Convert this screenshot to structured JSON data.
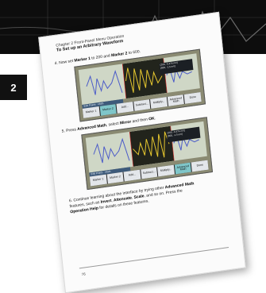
{
  "document": {
    "chapter": "Chapter 2 Front-Panel Menu Operation",
    "section": "To Set up an Arbitrary Waveform",
    "tab_label": "2",
    "page_number": "76"
  },
  "steps": [
    {
      "number": "4.",
      "text_plain_1": "Now set ",
      "text_bold_1": "Marker 1",
      "text_plain_2": " to 200 and ",
      "text_bold_2": "Marker 2",
      "text_plain_3": " to 600."
    },
    {
      "number": "5.",
      "text_plain_1": "Press ",
      "text_bold_1": "Advanced Math",
      "text_plain_2": ", select ",
      "text_bold_2": "Mirror",
      "text_plain_3": " and then ",
      "text_bold_3": "OK",
      "text_plain_4": "."
    },
    {
      "number": "6.",
      "line1_plain": "Continue learning about the interface by trying other ",
      "line1_bold": "Advanced Math",
      "line2_plain_1": " features, such as ",
      "line2_bold_1": "Invert",
      "line2_plain_2": ", ",
      "line2_bold_2": "Attenuate",
      "line2_plain_3": ", ",
      "line2_bold_3": "Scale",
      "line2_plain_4": ", and so on. Press the ",
      "line3_bold": "Operation Help",
      "line3_plain": " for details on these features."
    }
  ],
  "screens": [
    {
      "readout_line1": "(200, -0.474 mV)",
      "readout_line2": "(600, -1.5 mV)",
      "menu_title": "Edit Points · Math",
      "softkeys": [
        "Marker 1",
        "Marker 2",
        "Add...",
        "Subtract...",
        "Multiply...",
        "Advanced Math",
        "Done"
      ],
      "highlight_index": 1
    },
    {
      "readout_line1": "(200, -0.474 mV)",
      "readout_line2": "(600, -1.5 mV)",
      "menu_title": "Edit Points · Math",
      "softkeys": [
        "Marker 1",
        "Marker 2",
        "Add...",
        "Subtract...",
        "Multiply...",
        "Advanced Math",
        "Done"
      ],
      "highlight_index": 5
    }
  ],
  "colors": {
    "banner": "#0d0d0d",
    "screen_bg": "#cfd7c6",
    "waveform": "#4b5bc8",
    "selection": "#22241c",
    "softkey_highlight": "#7fc6c9"
  }
}
